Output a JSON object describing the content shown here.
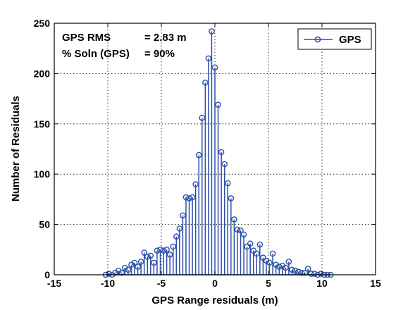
{
  "chart_data": {
    "type": "stem",
    "xlabel": "GPS Range residuals (m)",
    "ylabel": "Number of Residuals",
    "xlim": [
      -15,
      15
    ],
    "ylim": [
      0,
      250
    ],
    "xticks": [
      "-15",
      "-10",
      "-5",
      "0",
      "5",
      "10",
      "15"
    ],
    "yticks": [
      "0",
      "50",
      "100",
      "150",
      "200",
      "250"
    ],
    "grid": true,
    "legend_position": "top-right",
    "annotations": [
      {
        "label": "GPS RMS",
        "value": "= 2.83 m"
      },
      {
        "label": "% Soln (GPS)",
        "value": "= 90%"
      }
    ],
    "series": [
      {
        "name": "GPS",
        "color": "#2b4ea8",
        "x": [
          -10.2,
          -9.9,
          -9.6,
          -9.3,
          -9.0,
          -8.7,
          -8.4,
          -8.1,
          -7.8,
          -7.5,
          -7.2,
          -6.9,
          -6.6,
          -6.3,
          -6.0,
          -5.7,
          -5.4,
          -5.1,
          -4.8,
          -4.5,
          -4.2,
          -3.9,
          -3.6,
          -3.3,
          -3.0,
          -2.7,
          -2.4,
          -2.1,
          -1.8,
          -1.5,
          -1.2,
          -0.9,
          -0.6,
          -0.3,
          0.0,
          0.3,
          0.6,
          0.9,
          1.2,
          1.5,
          1.8,
          2.1,
          2.4,
          2.7,
          3.0,
          3.3,
          3.6,
          3.9,
          4.2,
          4.5,
          4.8,
          5.1,
          5.4,
          5.7,
          6.0,
          6.3,
          6.6,
          6.9,
          7.2,
          7.5,
          7.8,
          8.1,
          8.4,
          8.7,
          9.0,
          9.3,
          9.6,
          9.9,
          10.2,
          10.5,
          10.8
        ],
        "values": [
          0,
          1,
          0,
          2,
          4,
          2,
          7,
          5,
          10,
          12,
          8,
          13,
          22,
          18,
          19,
          12,
          24,
          25,
          24,
          25,
          20,
          28,
          38,
          46,
          59,
          77,
          76,
          77,
          90,
          119,
          156,
          191,
          215,
          242,
          206,
          169,
          122,
          110,
          91,
          76,
          55,
          45,
          44,
          40,
          28,
          31,
          24,
          21,
          30,
          17,
          14,
          12,
          21,
          10,
          8,
          9,
          7,
          13,
          5,
          4,
          3,
          2,
          2,
          6,
          1,
          1,
          0,
          1,
          0,
          0,
          0
        ]
      }
    ]
  }
}
